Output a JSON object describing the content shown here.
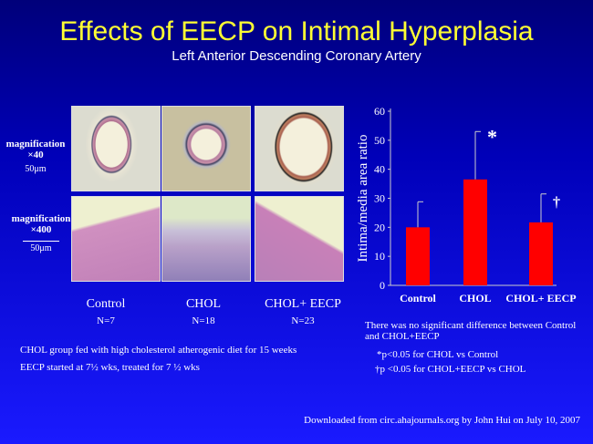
{
  "title": "Effects of EECP on Intimal Hyperplasia",
  "subtitle": "Left Anterior Descending Coronary Artery",
  "panels": {
    "low_mag": {
      "label": "magnification",
      "factor": "×40",
      "scale": "50μm"
    },
    "high_mag": {
      "label": "magnification",
      "factor": "×400",
      "scale": "50μm"
    },
    "groups": [
      {
        "name": "Control",
        "n": "N=7"
      },
      {
        "name": "CHOL",
        "n": "N=18"
      },
      {
        "name": "CHOL+ EECP",
        "n": "N=23"
      }
    ]
  },
  "notes": [
    "CHOL group fed with high cholesterol atherogenic diet for 15 weeks",
    "EECP started at 7½ wks, treated for 7 ½ wks"
  ],
  "stats": {
    "no_diff": "There was no significant difference between Control and CHOL+EECP",
    "star": "*p<0.05 for CHOL vs Control",
    "dagger": "†p <0.05 for CHOL+EECP vs CHOL"
  },
  "footer": "Downloaded from circ.ahajournals.org by John Hui on July 10, 2007",
  "chart_data": {
    "type": "bar",
    "categories": [
      "Control",
      "CHOL",
      "CHOL+ EECP"
    ],
    "values": [
      20,
      36.5,
      21.7
    ],
    "error_upper": [
      28.8,
      53,
      31.5
    ],
    "annotations": [
      "",
      "*",
      "†"
    ],
    "ylabel": "Intima/media area ratio",
    "xlabel": "",
    "ylim": [
      0,
      60
    ],
    "yticks": [
      0,
      10,
      20,
      30,
      40,
      50,
      60
    ],
    "bar_color": "#ff0000",
    "grid": false
  }
}
